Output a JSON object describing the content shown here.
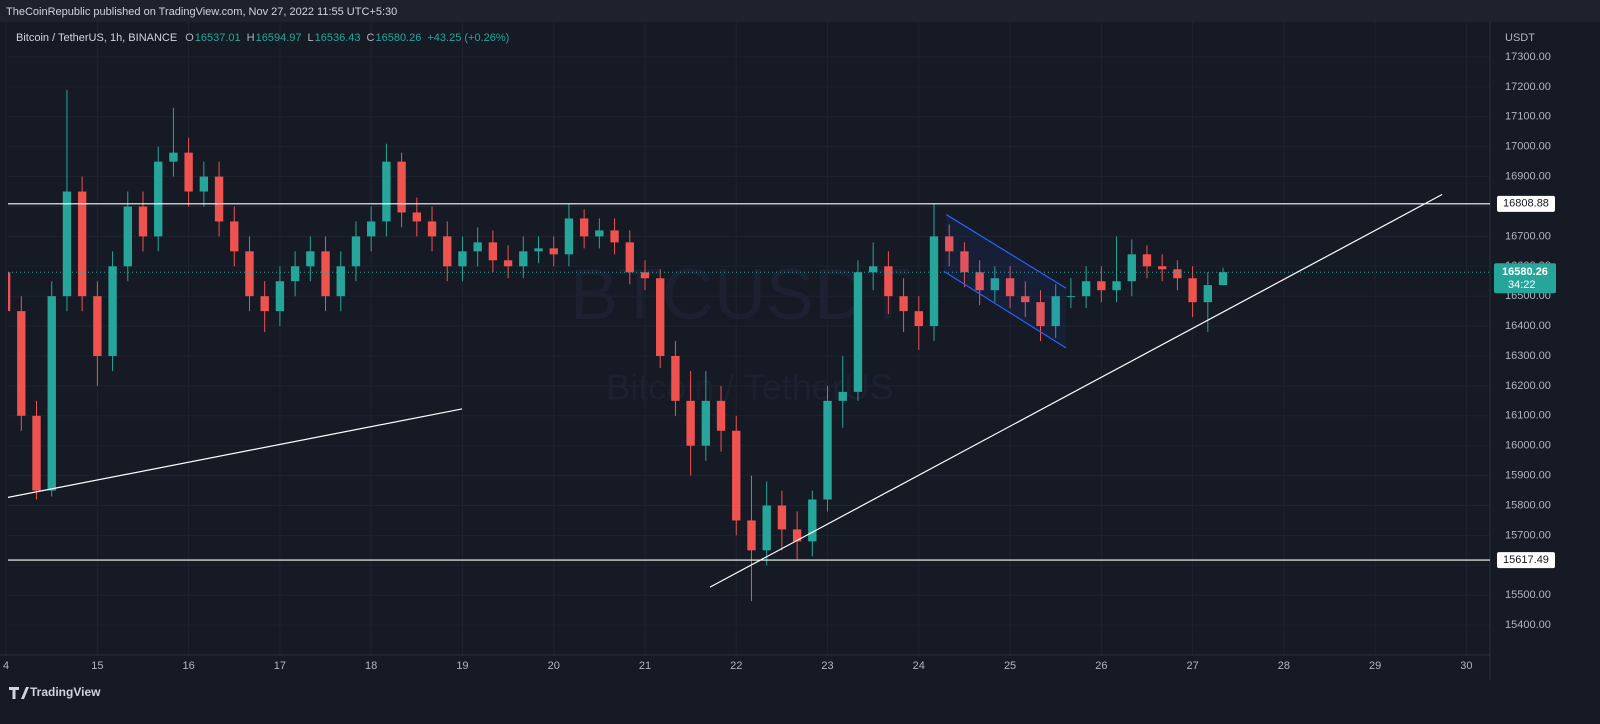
{
  "chart_data": {
    "type": "candlestick",
    "publisher": "TheCoinRepublic published on TradingView.com, Nov 27, 2022 11:55 UTC+5:30",
    "symbol": "Bitcoin / TetherUS, 1h, BINANCE",
    "ohlc_letters": [
      "O",
      "H",
      "L",
      "C"
    ],
    "change": "+43.25 (+0.26%)",
    "currency": "USDT",
    "countdown": "34:22",
    "watermark": [
      "BTCUSDT",
      "Bitcoin / TetherUS"
    ],
    "brand": "TradingView",
    "up_color": "#26a69a",
    "down_color": "#ef5350",
    "grid": true,
    "xlim": [
      0.5,
      390.2
    ],
    "ylim": [
      15300,
      17417
    ],
    "xticks": [
      {
        "value": 0,
        "label": "4"
      },
      {
        "value": 24,
        "label": "15"
      },
      {
        "value": 48,
        "label": "16"
      },
      {
        "value": 72,
        "label": "17"
      },
      {
        "value": 96,
        "label": "18"
      },
      {
        "value": 120,
        "label": "19"
      },
      {
        "value": 144,
        "label": "20"
      },
      {
        "value": 168,
        "label": "21"
      },
      {
        "value": 192,
        "label": "22"
      },
      {
        "value": 216,
        "label": "23"
      },
      {
        "value": 240,
        "label": "24"
      },
      {
        "value": 264,
        "label": "25"
      },
      {
        "value": 288,
        "label": "26"
      },
      {
        "value": 312,
        "label": "27"
      },
      {
        "value": 336,
        "label": "28"
      },
      {
        "value": 360,
        "label": "29"
      },
      {
        "value": 384,
        "label": "30"
      }
    ],
    "yticks": [
      {
        "value": 15400,
        "label": "15400.00"
      },
      {
        "value": 15500,
        "label": "15500.00"
      },
      {
        "value": 15600,
        "label": "15600.00"
      },
      {
        "value": 15700,
        "label": "15700.00"
      },
      {
        "value": 15800,
        "label": "15800.00"
      },
      {
        "value": 15900,
        "label": "15900.00"
      },
      {
        "value": 16000,
        "label": "16000.00"
      },
      {
        "value": 16100,
        "label": "16100.00"
      },
      {
        "value": 16200,
        "label": "16200.00"
      },
      {
        "value": 16300,
        "label": "16300.00"
      },
      {
        "value": 16400,
        "label": "16400.00"
      },
      {
        "value": 16500,
        "label": "16500.00"
      },
      {
        "value": 16600,
        "label": "16600.00"
      },
      {
        "value": 16700,
        "label": "16700.00"
      },
      {
        "value": 16800,
        "label": "16800.00"
      },
      {
        "value": 16900,
        "label": "16900.00"
      },
      {
        "value": 17000,
        "label": "17000.00"
      },
      {
        "value": 17100,
        "label": "17100.00"
      },
      {
        "value": 17200,
        "label": "17200.00"
      },
      {
        "value": 17300,
        "label": "17300.00"
      }
    ],
    "x": [
      0,
      4,
      8,
      12,
      16,
      20,
      24,
      28,
      32,
      36,
      40,
      44,
      48,
      52,
      56,
      60,
      64,
      68,
      72,
      76,
      80,
      84,
      88,
      92,
      96,
      100,
      104,
      108,
      112,
      116,
      120,
      124,
      128,
      132,
      136,
      140,
      144,
      148,
      152,
      156,
      160,
      164,
      168,
      172,
      176,
      180,
      184,
      188,
      192,
      196,
      200,
      204,
      208,
      212,
      216,
      220,
      224,
      228,
      232,
      236,
      240,
      244,
      248,
      252,
      256,
      260,
      264,
      268,
      272,
      276,
      280,
      284,
      288,
      292,
      296,
      300,
      304,
      308,
      312,
      316,
      320
    ],
    "open": [
      16580,
      16450,
      16100,
      15850,
      16500,
      16850,
      16500,
      16300,
      16600,
      16800,
      16700,
      16950,
      16980,
      16850,
      16900,
      16750,
      16650,
      16500,
      16450,
      16550,
      16600,
      16650,
      16500,
      16600,
      16700,
      16750,
      16950,
      16780,
      16750,
      16700,
      16600,
      16650,
      16680,
      16620,
      16600,
      16650,
      16660,
      16640,
      16760,
      16700,
      16720,
      16680,
      16580,
      16560,
      16300,
      16150,
      16000,
      16150,
      16050,
      15750,
      15650,
      15800,
      15720,
      15680,
      15820,
      16150,
      16180,
      16580,
      16600,
      16500,
      16450,
      16400,
      16700,
      16650,
      16580,
      16520,
      16560,
      16500,
      16480,
      16400,
      16500,
      16500,
      16550,
      16520,
      16550,
      16640,
      16600,
      16590,
      16560,
      16480,
      16537.01
    ],
    "high": [
      16630,
      16500,
      16150,
      16550,
      17190,
      16900,
      16550,
      16650,
      16850,
      16850,
      17000,
      17130,
      17030,
      16950,
      16950,
      16800,
      16700,
      16550,
      16600,
      16650,
      16700,
      16700,
      16650,
      16750,
      16800,
      17010,
      16980,
      16830,
      16800,
      16750,
      16700,
      16730,
      16720,
      16670,
      16700,
      16700,
      16700,
      16810,
      16790,
      16760,
      16760,
      16720,
      16620,
      16590,
      16350,
      16250,
      16250,
      16200,
      16100,
      15900,
      15880,
      15850,
      15780,
      15850,
      16200,
      16300,
      16620,
      16680,
      16650,
      16560,
      16500,
      16810,
      16740,
      16680,
      16620,
      16600,
      16600,
      16550,
      16520,
      16540,
      16560,
      16600,
      16600,
      16700,
      16690,
      16670,
      16640,
      16620,
      16600,
      16580,
      16594.97
    ],
    "low": [
      16400,
      16050,
      15820,
      15830,
      16450,
      16450,
      16200,
      16250,
      16550,
      16650,
      16650,
      16900,
      16800,
      16800,
      16700,
      16600,
      16450,
      16380,
      16400,
      16500,
      16550,
      16450,
      16450,
      16550,
      16650,
      16700,
      16730,
      16700,
      16650,
      16550,
      16550,
      16600,
      16580,
      16560,
      16560,
      16610,
      16600,
      16600,
      16660,
      16660,
      16640,
      16540,
      16520,
      16260,
      16100,
      15900,
      15950,
      15980,
      15700,
      15480,
      15600,
      15650,
      15620,
      15630,
      15780,
      16060,
      16150,
      16520,
      16440,
      16380,
      16320,
      16350,
      16600,
      16530,
      16470,
      16480,
      16460,
      16430,
      16350,
      16360,
      16460,
      16460,
      16480,
      16480,
      16500,
      16560,
      16550,
      16520,
      16430,
      16380,
      16536.43
    ],
    "close": [
      16450,
      16100,
      15850,
      16500,
      16850,
      16500,
      16300,
      16600,
      16800,
      16700,
      16950,
      16980,
      16850,
      16900,
      16750,
      16650,
      16500,
      16450,
      16550,
      16600,
      16650,
      16500,
      16600,
      16700,
      16750,
      16950,
      16780,
      16750,
      16700,
      16600,
      16650,
      16680,
      16620,
      16600,
      16650,
      16660,
      16640,
      16760,
      16700,
      16720,
      16680,
      16580,
      16560,
      16300,
      16150,
      16000,
      16150,
      16050,
      15750,
      15650,
      15800,
      15720,
      15680,
      15820,
      16150,
      16180,
      16580,
      16600,
      16500,
      16450,
      16400,
      16700,
      16650,
      16580,
      16520,
      16560,
      16500,
      16480,
      16400,
      16500,
      16500,
      16550,
      16520,
      16550,
      16640,
      16600,
      16590,
      16560,
      16480,
      16537.01,
      16580.26
    ],
    "levels": [
      16808.88,
      15617.49
    ],
    "trendlines": [
      {
        "x": [
          0.5,
          119.9
        ],
        "y": [
          15827,
          16123
        ]
      },
      {
        "x": [
          185.1,
          377.6
        ],
        "y": [
          15527,
          16840
        ]
      }
    ],
    "channel": {
      "color": "#2962ff",
      "upper": {
        "x": [
          247.2,
          278.7
        ],
        "y": [
          16773,
          16527
        ]
      },
      "lower": {
        "x": [
          246.6,
          278.7
        ],
        "y": [
          16583,
          16327
        ]
      }
    }
  }
}
